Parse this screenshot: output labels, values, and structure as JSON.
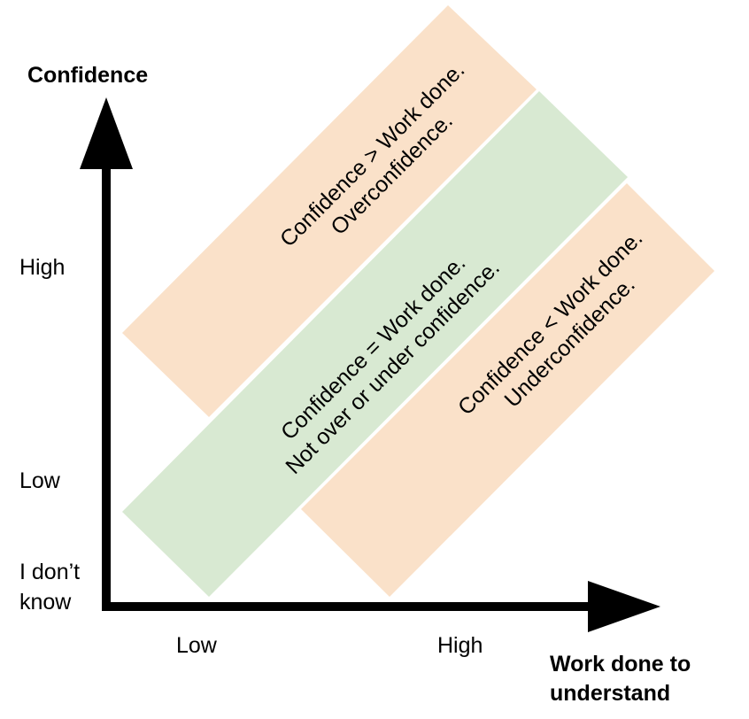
{
  "colors": {
    "overconfidence_band": "#fae1c9",
    "calibrated_band": "#d8e9d2",
    "axis": "#000000"
  },
  "y_axis": {
    "title": "Confidence",
    "ticks": [
      "High",
      "Low",
      "I don’t",
      "know"
    ]
  },
  "x_axis": {
    "title_line1": "Work done to",
    "title_line2": "understand",
    "ticks": [
      "Low",
      "High"
    ]
  },
  "bands": {
    "over": {
      "line1": "Confidence > Work done.",
      "line2": "Overconfidence."
    },
    "calibrated": {
      "line1": "Confidence = Work done.",
      "line2": "Not over or under confidence."
    },
    "under": {
      "line1": "Confidence < Work done.",
      "line2": "Underconfidence."
    }
  }
}
